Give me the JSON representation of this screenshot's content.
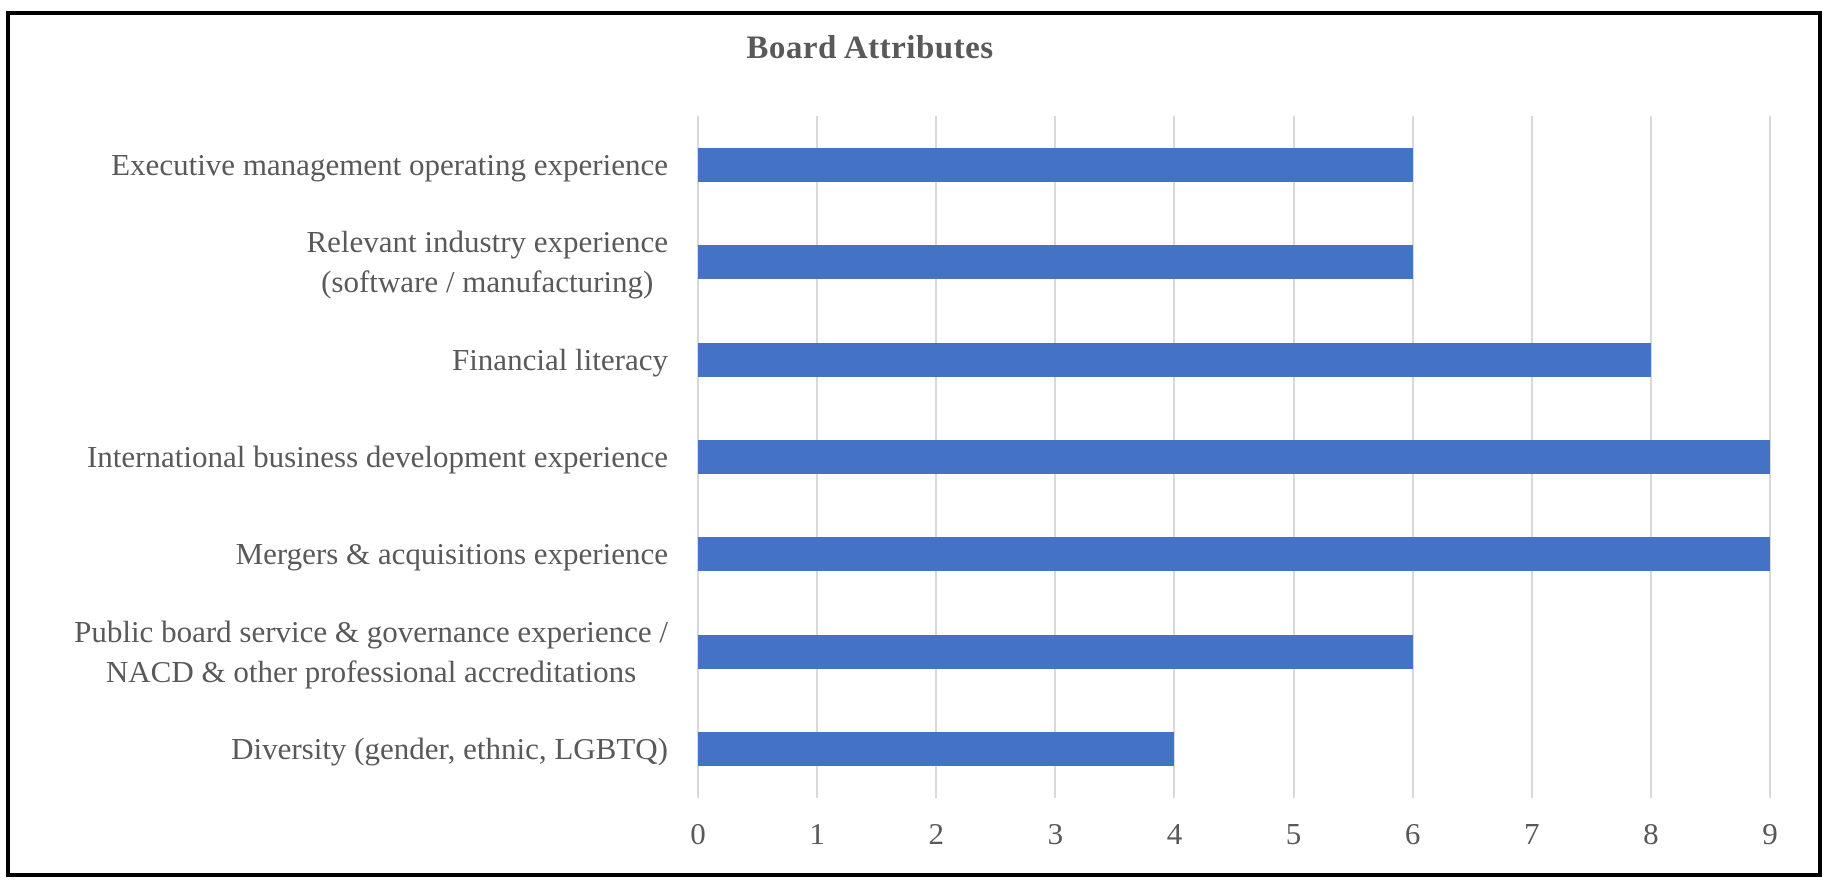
{
  "chart_data": {
    "type": "bar",
    "orientation": "horizontal",
    "title": "Board Attributes",
    "categories": [
      "Executive management operating experience",
      "Relevant industry experience\n(software / manufacturing)",
      "Financial literacy",
      "International business development experience",
      "Mergers & acquisitions experience",
      "Public board service & governance experience /\nNACD & other professional accreditations",
      "Diversity (gender, ethnic, LGBTQ)"
    ],
    "values": [
      6,
      6,
      8,
      9,
      9,
      6,
      4
    ],
    "xlabel": "",
    "ylabel": "",
    "xlim": [
      0,
      9
    ],
    "x_ticks": [
      0,
      1,
      2,
      3,
      4,
      5,
      6,
      7,
      8,
      9
    ],
    "grid": true,
    "legend": false,
    "colors": {
      "bar": "#4472C4",
      "gridline": "#D9D9D9",
      "axis_text": "#595959",
      "title_text": "#595959",
      "border": "#000000",
      "background": "#FFFFFF"
    }
  }
}
